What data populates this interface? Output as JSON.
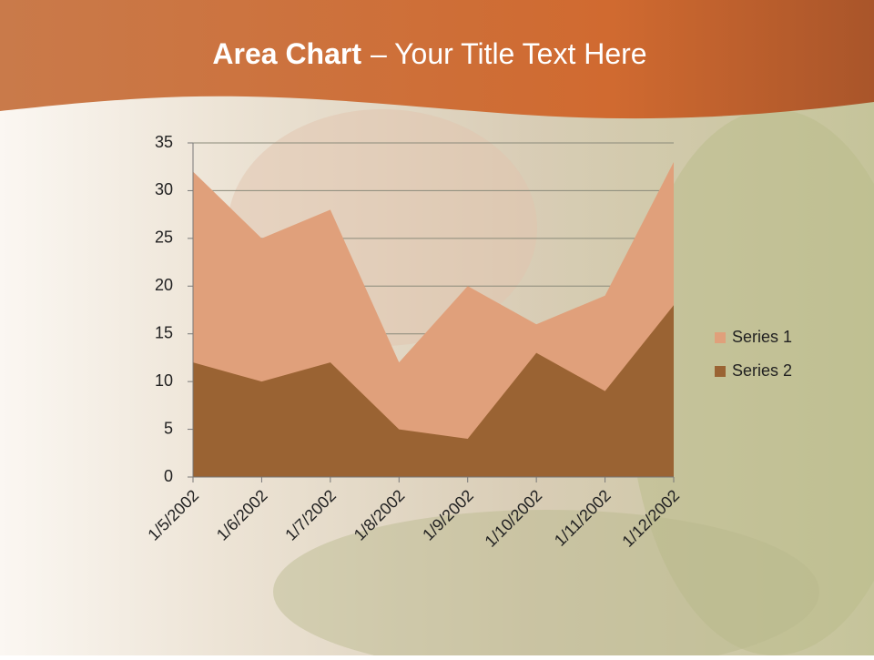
{
  "chart_data": {
    "type": "area",
    "title": [
      "Area Chart",
      "– Your Title Text Here"
    ],
    "categories": [
      "1/5/2002",
      "1/6/2002",
      "1/7/2002",
      "1/8/2002",
      "1/9/2002",
      "1/10/2002",
      "1/11/2002",
      "1/12/2002"
    ],
    "series": [
      {
        "name": "Series 1",
        "color": "#e0a07b",
        "values": [
          32,
          25,
          28,
          12,
          20,
          16,
          19,
          33
        ]
      },
      {
        "name": "Series 2",
        "color": "#9a6333",
        "values": [
          12,
          10,
          12,
          5,
          4,
          13,
          9,
          18
        ]
      }
    ],
    "ylim": [
      0,
      35
    ],
    "yticks": [
      0,
      5,
      10,
      15,
      20,
      25,
      30,
      35
    ],
    "grid": true,
    "legend": "right"
  }
}
